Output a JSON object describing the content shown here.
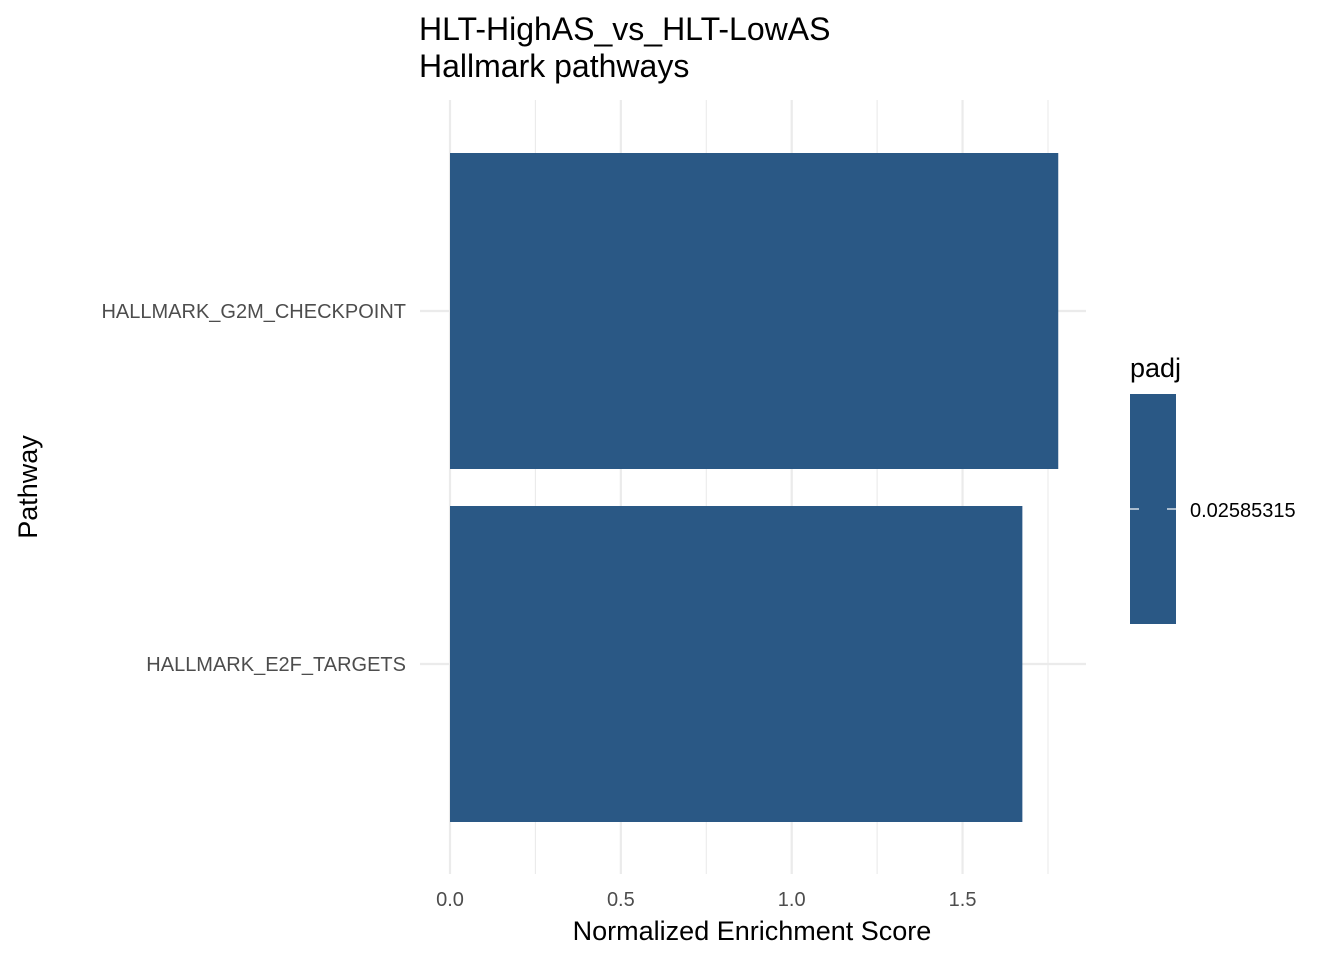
{
  "chart_data": {
    "type": "bar",
    "orientation": "horizontal",
    "title": "HLT-HighAS_vs_HLT-LowAS",
    "subtitle": "Hallmark pathways",
    "xlabel": "Normalized Enrichment Score",
    "ylabel": "Pathway",
    "categories": [
      "HALLMARK_G2M_CHECKPOINT",
      "HALLMARK_E2F_TARGETS"
    ],
    "values": [
      1.78,
      1.675
    ],
    "xlim": [
      0,
      1.865
    ],
    "xticks": [
      0.0,
      0.5,
      1.0,
      1.5
    ],
    "xtick_labels": [
      "0.0",
      "0.5",
      "1.0",
      "1.5"
    ],
    "grid": true,
    "bar_color": "#2a5885",
    "grid_color": "#ebebeb",
    "legend": {
      "title": "padj",
      "placement": "right",
      "colorbar_color": "#2a5885",
      "labels": [
        "0.02585315"
      ]
    }
  }
}
